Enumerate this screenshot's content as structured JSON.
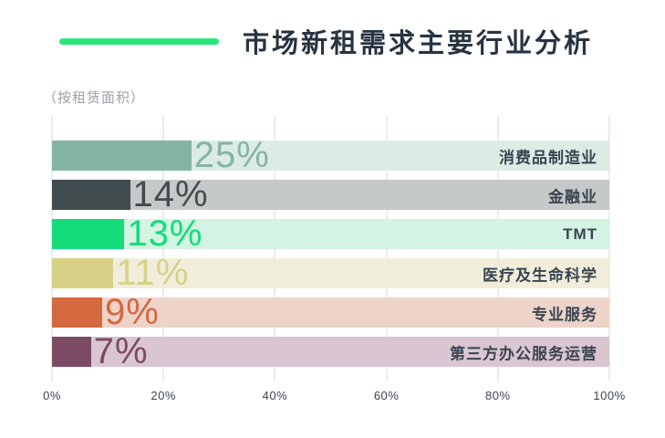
{
  "header": {
    "title": "市场新租需求主要行业分析",
    "subtitle": "（按租赁面积）",
    "accent_color": "#2ce57d"
  },
  "chart_data": {
    "type": "bar",
    "orientation": "horizontal",
    "title": "市场新租需求主要行业分析",
    "subtitle": "（按租赁面积）",
    "categories": [
      "消费品制造业",
      "金融业",
      "TMT",
      "医疗及生命科学",
      "专业服务",
      "第三方办公服务运营"
    ],
    "values": [
      25,
      14,
      13,
      11,
      9,
      7
    ],
    "value_labels": [
      "25%",
      "14%",
      "13%",
      "11%",
      "9%",
      "7%"
    ],
    "bar_colors": [
      "#84b4a4",
      "#414c4e",
      "#12dd79",
      "#d6d187",
      "#d4683e",
      "#7c4a64"
    ],
    "track_colors": [
      "#dcebe4",
      "#c5cac9",
      "#d3f3e3",
      "#f0eeda",
      "#eed3c9",
      "#d9c6d1"
    ],
    "x_ticks": [
      "0%",
      "20%",
      "40%",
      "60%",
      "80%",
      "100%"
    ],
    "xlim": [
      0,
      100
    ],
    "grid": true,
    "gridline_color": "#d7dadb"
  }
}
